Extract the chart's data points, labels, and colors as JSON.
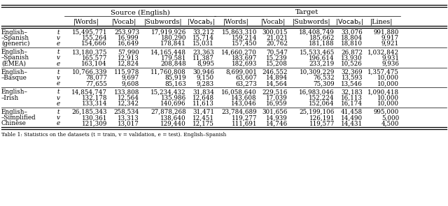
{
  "title_source": "Source (English)",
  "title_target": "Target",
  "col_headers": [
    "|Words|",
    "|Vocab|",
    "|Subwords|",
    "|Vocab_s|",
    "|Words|",
    "|Vocab|",
    "|Subwords|",
    "|Vocab_s|",
    "|Lines|"
  ],
  "row_groups": [
    {
      "label_lines": [
        "English–",
        "–Spanish",
        "(generic)"
      ],
      "split_labels": [
        "t",
        "v",
        "e"
      ],
      "rows": [
        [
          "15,495,771",
          "253,973",
          "17,919,926",
          "33,212",
          "15,863,310",
          "300,015",
          "18,408,749",
          "33,076",
          "991,880"
        ],
        [
          "155,264",
          "16,999",
          "180,290",
          "15,714",
          "159,214",
          "21,021",
          "185,662",
          "18,804",
          "9,917"
        ],
        [
          "154,666",
          "16,649",
          "178,841",
          "15,031",
          "157,450",
          "20,762",
          "181,188",
          "18,810",
          "9,921"
        ]
      ]
    },
    {
      "label_lines": [
        "English–",
        "–Spanish",
        "(EMEA)"
      ],
      "split_labels": [
        "t",
        "v",
        "e"
      ],
      "rows": [
        [
          "13,180,375",
          "57,990",
          "14,165,448",
          "23,363",
          "14,660,270",
          "70,547",
          "15,533,465",
          "26,872",
          "1,032,842"
        ],
        [
          "165,577",
          "12,913",
          "179,581",
          "11,387",
          "183,697",
          "15,239",
          "196,614",
          "13,930",
          "9,931"
        ],
        [
          "163,104",
          "12,824",
          "208,848",
          "8,995",
          "182,693",
          "15,208",
          "233,219",
          "10,526",
          "9,936"
        ]
      ]
    },
    {
      "label_lines": [
        "English–",
        "–Basque",
        ""
      ],
      "split_labels": [
        "t",
        "v",
        "e"
      ],
      "rows": [
        [
          "10,766,339",
          "115,978",
          "11,760,808",
          "30,946",
          "8,699,001",
          "246,552",
          "10,309,229",
          "32,369",
          "1,357,475"
        ],
        [
          "78,077",
          "9,697",
          "85,919",
          "9,150",
          "63,607",
          "14,894",
          "76,532",
          "13,593",
          "10,000"
        ],
        [
          "77,655",
          "9,608",
          "85,163",
          "9,283",
          "63,273",
          "14,564",
          "75,309",
          "13,546",
          "10,000"
        ]
      ]
    },
    {
      "label_lines": [
        "English–",
        "–Irish",
        ""
      ],
      "split_labels": [
        "t",
        "v",
        "e"
      ],
      "rows": [
        [
          "14,854,747",
          "133,808",
          "15,234,432",
          "31,834",
          "16,058,640",
          "229,516",
          "16,983,046",
          "32,183",
          "1,090,418"
        ],
        [
          "132,178",
          "12,564",
          "135,986",
          "12,648",
          "143,608",
          "17,039",
          "152,224",
          "16,113",
          "10,000"
        ],
        [
          "133,314",
          "12,342",
          "140,696",
          "11,613",
          "143,046",
          "16,959",
          "152,064",
          "16,174",
          "10,000"
        ]
      ]
    },
    {
      "label_lines": [
        "English–",
        "–Simplified",
        "Chinese"
      ],
      "split_labels": [
        "t",
        "v",
        "e"
      ],
      "rows": [
        [
          "26,185,343",
          "258,534",
          "27,878,268",
          "31,471",
          "23,784,689",
          "301,656",
          "25,199,106",
          "41,458",
          "995,000"
        ],
        [
          "130,361",
          "13,313",
          "138,640",
          "12,451",
          "119,277",
          "14,939",
          "126,191",
          "14,490",
          "5,000"
        ],
        [
          "121,309",
          "13,017",
          "129,440",
          "12,175",
          "111,691",
          "14,746",
          "119,577",
          "14,431",
          "4,500"
        ]
      ]
    }
  ],
  "caption": "Table 1: Statistics on the datasets (t = train, v = validation, e = test). English–Spanish"
}
